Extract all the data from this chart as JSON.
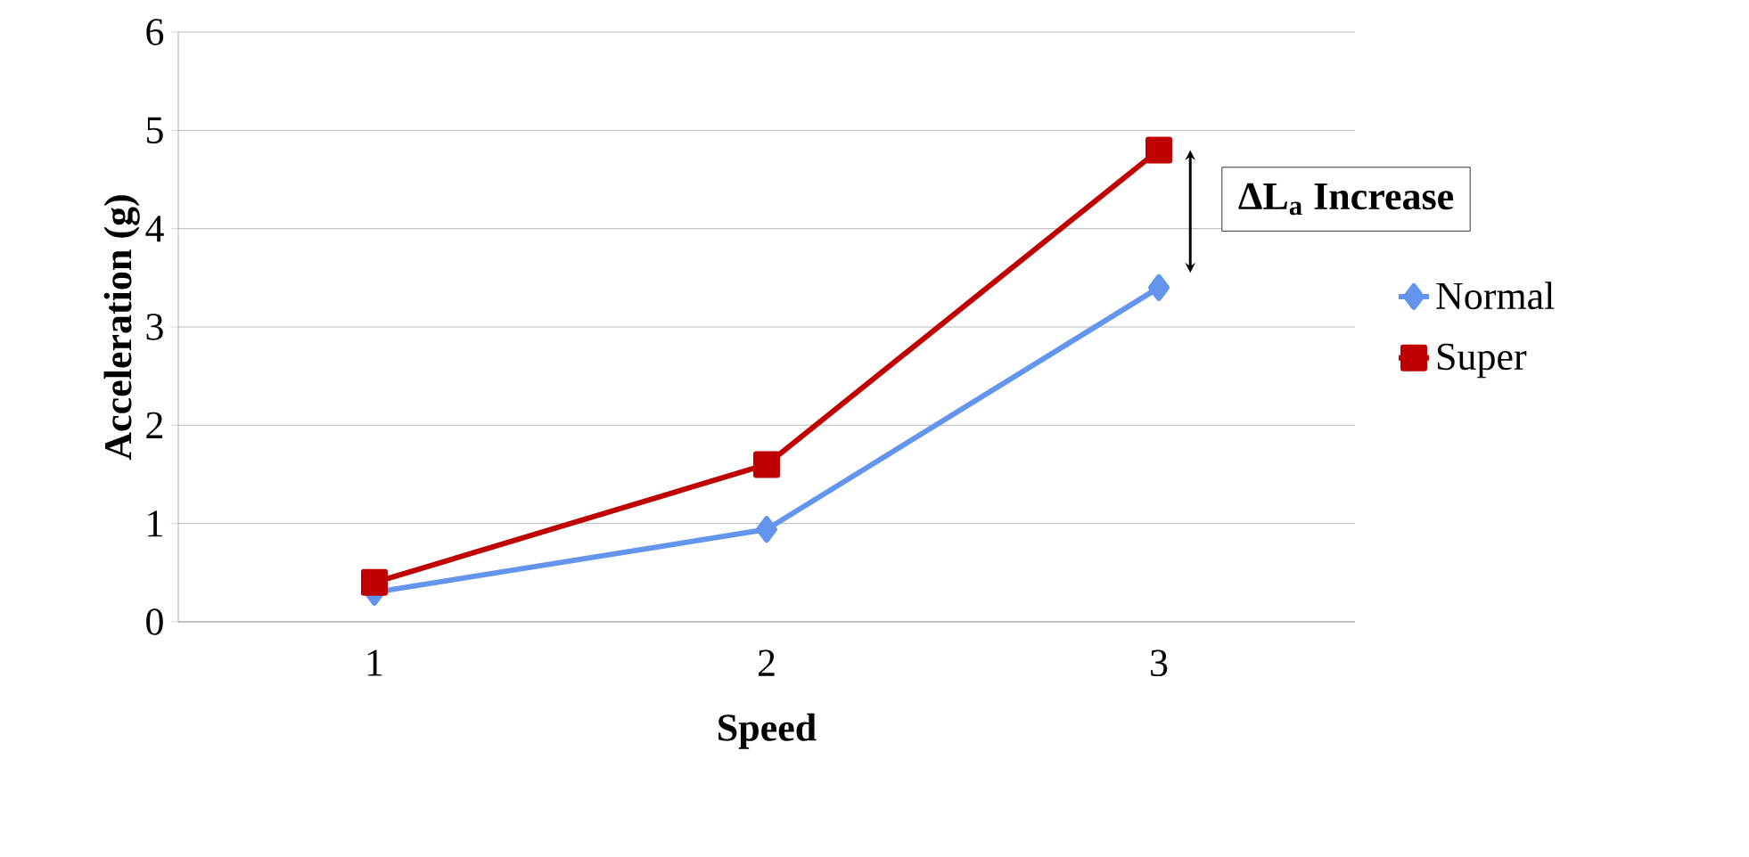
{
  "chart_data": {
    "type": "line",
    "xlabel": "Speed",
    "ylabel": "Acceleration (g)",
    "categories": [
      "1",
      "2",
      "3"
    ],
    "series": [
      {
        "name": "Normal",
        "color": "#6495ed",
        "marker": "diamond",
        "values": [
          0.3,
          0.94,
          3.4
        ]
      },
      {
        "name": "Super",
        "color": "#c00000",
        "marker": "square",
        "values": [
          0.4,
          1.6,
          4.8
        ]
      }
    ],
    "ylim": [
      0,
      6
    ],
    "yticks": [
      0,
      1,
      2,
      3,
      4,
      5,
      6
    ],
    "grid": "y",
    "legend": "right",
    "annotations": [
      "ΔL$_{a}$ Increase"
    ]
  }
}
